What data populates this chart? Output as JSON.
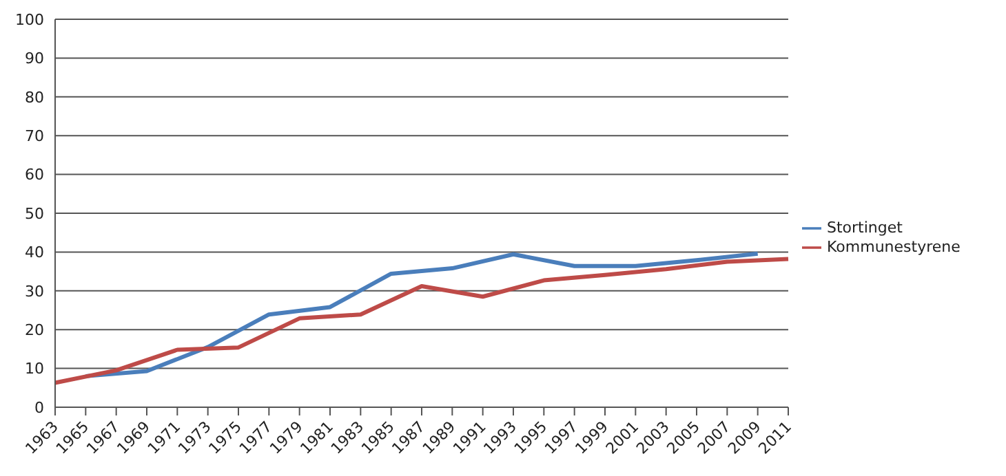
{
  "chart_data": {
    "type": "line",
    "categories": [
      "1963",
      "1965",
      "1967",
      "1969",
      "1971",
      "1973",
      "1975",
      "1977",
      "1979",
      "1981",
      "1983",
      "1985",
      "1987",
      "1989",
      "1991",
      "1993",
      "1995",
      "1997",
      "1999",
      "2001",
      "2003",
      "2005",
      "2007",
      "2009",
      "2011"
    ],
    "series": [
      {
        "name": "Stortinget",
        "color": "#4a7ebb",
        "values": [
          null,
          8.0,
          null,
          9.3,
          null,
          15.5,
          null,
          23.9,
          null,
          25.8,
          null,
          34.4,
          null,
          35.8,
          null,
          39.4,
          null,
          36.4,
          null,
          36.4,
          null,
          37.9,
          null,
          39.6,
          null
        ]
      },
      {
        "name": "Kommunestyrene",
        "color": "#be4b48",
        "values": [
          6.3,
          null,
          9.5,
          null,
          14.8,
          null,
          15.4,
          null,
          22.9,
          null,
          23.9,
          null,
          31.2,
          null,
          28.5,
          null,
          32.7,
          null,
          34.1,
          null,
          35.6,
          null,
          37.5,
          null,
          38.2
        ]
      }
    ],
    "ylim": [
      0,
      100
    ],
    "yticks": [
      0,
      10,
      20,
      30,
      40,
      50,
      60,
      70,
      80,
      90,
      100
    ],
    "grid": "y",
    "legend": "right",
    "marker": "none",
    "line_style": "solid"
  }
}
